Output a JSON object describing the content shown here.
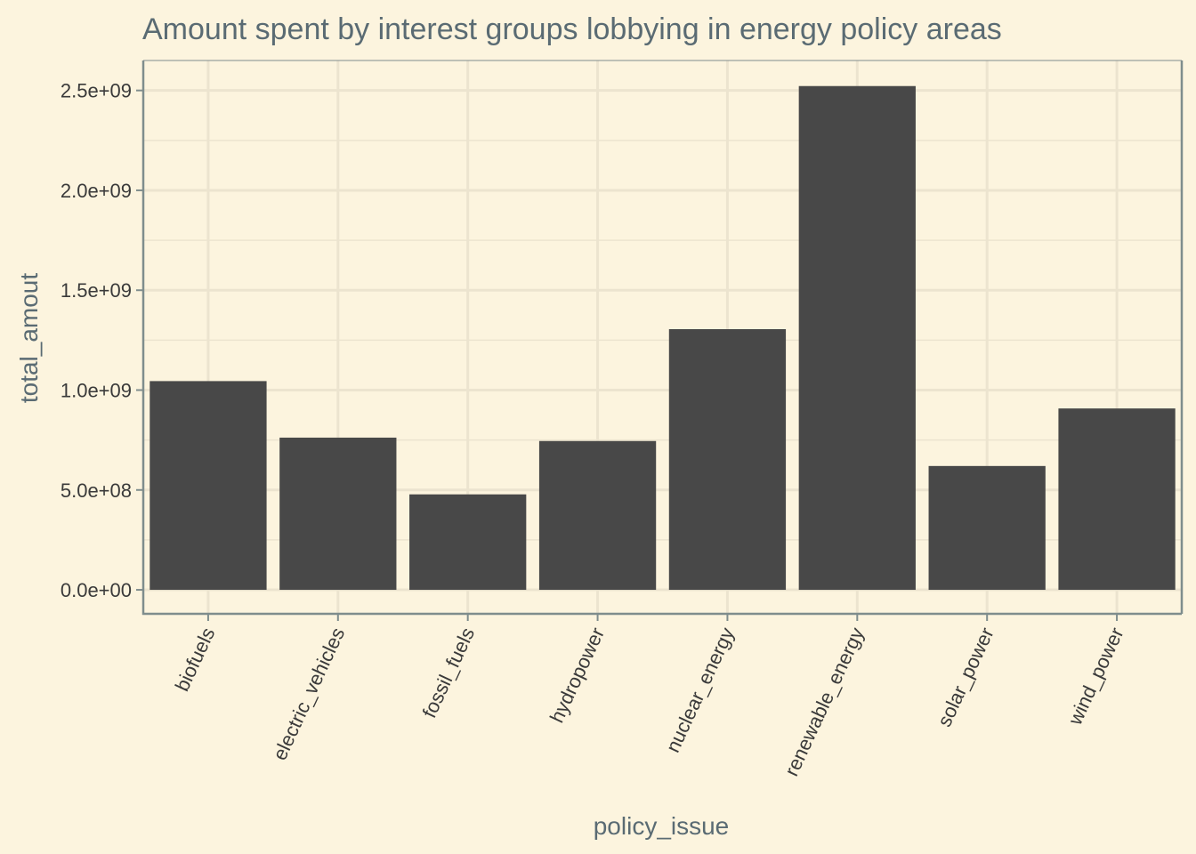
{
  "chart_data": {
    "type": "bar",
    "title": "Amount spent by interest groups lobbying in energy policy areas",
    "xlabel": "policy_issue",
    "ylabel": "total_amout",
    "categories": [
      "biofuels",
      "electric_vehicles",
      "fossil_fuels",
      "hydropower",
      "nuclear_energy",
      "renewable_energy",
      "solar_power",
      "wind_power"
    ],
    "values": [
      1045000000,
      762000000,
      478000000,
      745000000,
      1305000000,
      2522000000,
      620000000,
      908000000
    ],
    "yticks": [
      0,
      500000000,
      1000000000,
      1500000000,
      2000000000,
      2500000000
    ],
    "ytick_labels": [
      "0.0e+00",
      "5.0e+08",
      "1.0e+09",
      "1.5e+09",
      "2.0e+09",
      "2.5e+09"
    ],
    "ylim": [
      -120000000,
      2650000000
    ],
    "grid": true,
    "colors": {
      "background": "#fcf4de",
      "bar": "#484848",
      "grid": "#ece4cf",
      "axis": "#7f8d8d",
      "text": "#5a6b73"
    }
  }
}
